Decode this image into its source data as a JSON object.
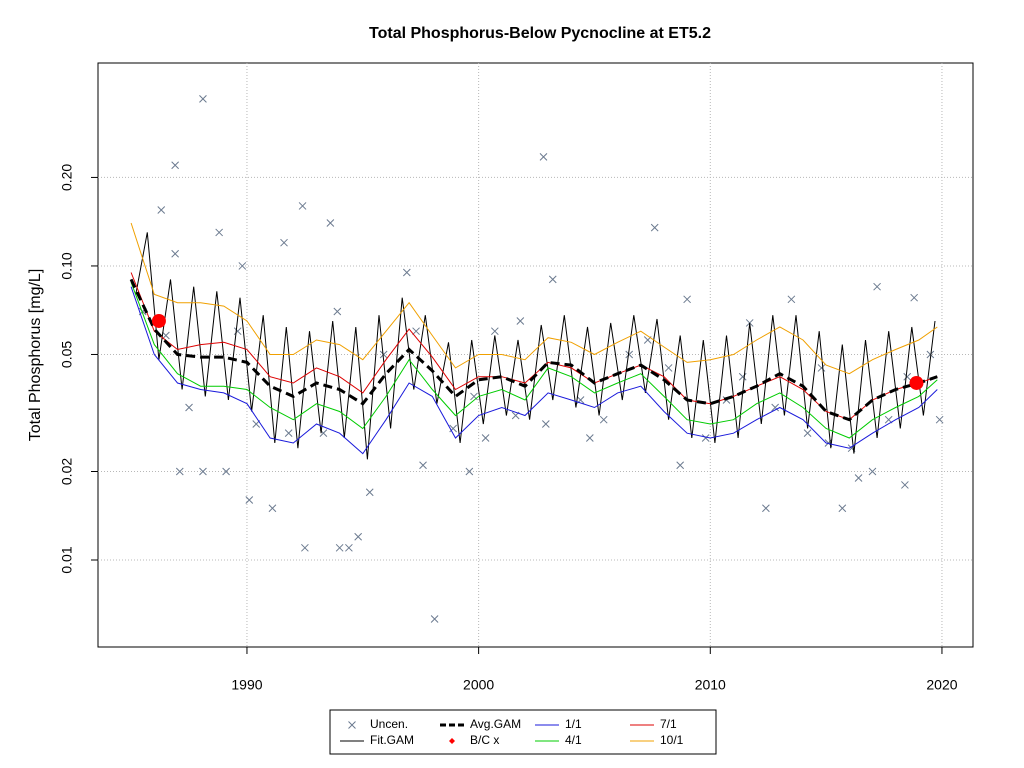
{
  "chart_data": {
    "type": "line",
    "title": "Total Phosphorus-Below Pycnocline at ET5.2",
    "y_label": "Total Phosphorus [mg/L]",
    "y_log": true,
    "grid": true,
    "legend": "bottom",
    "xlim": [
      1983.57,
      2021.34
    ],
    "ylim": [
      0.00506,
      0.49
    ],
    "xticks": [
      1990,
      2000,
      2010,
      2020
    ],
    "yticks": [
      0.01,
      0.02,
      0.05,
      {
        "value": 0.1,
        "label": "0.10"
      },
      {
        "value": 0.2,
        "label": "0.20"
      }
    ],
    "series": [
      {
        "name": "Uncen.",
        "type": "scatter",
        "color": "#6b7a8f",
        "x": [
          1988.1,
          1986.9,
          2002.8,
          1992.4,
          1993.6,
          2007.6,
          1986.3,
          1988.8,
          1991.6,
          1986.9,
          1989.8,
          1996.9,
          1998.1,
          1992.5,
          1994.0,
          1994.4,
          1994.8,
          1995.3,
          1990.1,
          1991.1,
          2012.4,
          2015.7,
          1987.1,
          1988.1,
          1989.1,
          1997.6,
          1999.6,
          2008.7,
          2016.4,
          2018.4,
          2017.0,
          2003.2,
          2013.5,
          2017.2,
          2018.8,
          1993.9,
          2001.8,
          2009.0,
          2011.7,
          1989.6,
          1985.5,
          1986.5,
          1987.5,
          1990.4,
          1991.8,
          1993.3,
          1995.9,
          1997.3,
          1998.9,
          1999.8,
          2000.7,
          2001.6,
          2002.9,
          2004.4,
          2005.4,
          2006.5,
          2007.3,
          2008.2,
          2009.8,
          2010.7,
          2011.4,
          2012.8,
          2014.2,
          2015.1,
          2016.1,
          2017.7,
          2018.5,
          2019.5,
          2019.9,
          2014.8,
          2004.8,
          2000.3
        ],
        "values": [
          0.37,
          0.22,
          0.235,
          0.16,
          0.14,
          0.135,
          0.155,
          0.13,
          0.12,
          0.11,
          0.1,
          0.095,
          0.0063,
          0.011,
          0.011,
          0.011,
          0.012,
          0.017,
          0.016,
          0.015,
          0.015,
          0.015,
          0.02,
          0.02,
          0.02,
          0.021,
          0.02,
          0.021,
          0.019,
          0.018,
          0.02,
          0.09,
          0.077,
          0.085,
          0.078,
          0.07,
          0.065,
          0.077,
          0.064,
          0.06,
          0.07,
          0.058,
          0.033,
          0.029,
          0.027,
          0.027,
          0.05,
          0.06,
          0.028,
          0.036,
          0.06,
          0.031,
          0.029,
          0.035,
          0.03,
          0.05,
          0.056,
          0.045,
          0.026,
          0.035,
          0.042,
          0.033,
          0.027,
          0.025,
          0.024,
          0.03,
          0.042,
          0.05,
          0.03,
          0.045,
          0.026,
          0.026
        ]
      },
      {
        "name": "Fit.GAM",
        "type": "line",
        "color": "#000000",
        "x": [
          1985.2,
          1985.7,
          1986.2,
          1986.7,
          1987.2,
          1987.7,
          1988.2,
          1988.7,
          1989.2,
          1989.7,
          1990.2,
          1990.7,
          1991.2,
          1991.7,
          1992.2,
          1992.7,
          1993.2,
          1993.7,
          1994.2,
          1994.7,
          1995.2,
          1995.7,
          1996.2,
          1996.7,
          1997.2,
          1997.7,
          1998.2,
          1998.7,
          1999.2,
          1999.7,
          2000.2,
          2000.7,
          2001.2,
          2001.7,
          2002.2,
          2002.7,
          2003.2,
          2003.7,
          2004.2,
          2004.7,
          2005.2,
          2005.7,
          2006.2,
          2006.7,
          2007.2,
          2007.7,
          2008.2,
          2008.7,
          2009.2,
          2009.7,
          2010.2,
          2010.7,
          2011.2,
          2011.7,
          2012.2,
          2012.7,
          2013.2,
          2013.7,
          2014.2,
          2014.7,
          2015.2,
          2015.7,
          2016.2,
          2016.7,
          2017.2,
          2017.7,
          2018.2,
          2018.7,
          2019.2,
          2019.7
        ],
        "values": [
          0.08,
          0.13,
          0.048,
          0.09,
          0.038,
          0.085,
          0.036,
          0.082,
          0.035,
          0.078,
          0.032,
          0.068,
          0.025,
          0.062,
          0.024,
          0.06,
          0.027,
          0.065,
          0.026,
          0.062,
          0.022,
          0.068,
          0.028,
          0.078,
          0.038,
          0.068,
          0.034,
          0.055,
          0.025,
          0.056,
          0.029,
          0.058,
          0.031,
          0.056,
          0.03,
          0.063,
          0.035,
          0.068,
          0.033,
          0.062,
          0.031,
          0.064,
          0.035,
          0.068,
          0.037,
          0.066,
          0.03,
          0.058,
          0.026,
          0.056,
          0.025,
          0.058,
          0.026,
          0.064,
          0.029,
          0.068,
          0.031,
          0.068,
          0.028,
          0.06,
          0.024,
          0.054,
          0.023,
          0.056,
          0.026,
          0.06,
          0.028,
          0.062,
          0.031,
          0.065
        ]
      },
      {
        "name": "Avg.GAM",
        "type": "line",
        "dashed": true,
        "color": "#000000",
        "x": [
          1985,
          1986,
          1987,
          1988,
          1989,
          1990,
          1991,
          1992,
          1993,
          1994,
          1995,
          1996,
          1997,
          1998,
          1999,
          2000,
          2001,
          2002,
          2003,
          2004,
          2005,
          2006,
          2007,
          2008,
          2009,
          2010,
          2011,
          2012,
          2013,
          2014,
          2015,
          2016,
          2017,
          2018,
          2019,
          2019.8
        ],
        "values": [
          0.09,
          0.061,
          0.05,
          0.049,
          0.049,
          0.047,
          0.039,
          0.036,
          0.04,
          0.038,
          0.034,
          0.043,
          0.052,
          0.044,
          0.036,
          0.041,
          0.042,
          0.039,
          0.047,
          0.046,
          0.04,
          0.043,
          0.046,
          0.041,
          0.035,
          0.034,
          0.036,
          0.039,
          0.043,
          0.039,
          0.032,
          0.03,
          0.035,
          0.038,
          0.04,
          0.042
        ]
      },
      {
        "name": "B/C x",
        "type": "scatter",
        "color": "#ff0000",
        "x": [
          1986.2,
          2018.9
        ],
        "values": [
          0.065,
          0.04
        ]
      },
      {
        "name": "1/1",
        "type": "line",
        "color": "#1a1adb",
        "x": [
          1985,
          1986,
          1987,
          1988,
          1989,
          1990,
          1991,
          1992,
          1993,
          1994,
          1995,
          1996,
          1997,
          1998,
          1999,
          2000,
          2001,
          2002,
          2003,
          2004,
          2005,
          2006,
          2007,
          2008,
          2009,
          2010,
          2011,
          2012,
          2013,
          2014,
          2015,
          2016,
          2017,
          2018,
          2019,
          2019.8
        ],
        "values": [
          0.085,
          0.05,
          0.04,
          0.038,
          0.037,
          0.034,
          0.026,
          0.025,
          0.029,
          0.027,
          0.023,
          0.03,
          0.04,
          0.036,
          0.026,
          0.031,
          0.033,
          0.031,
          0.037,
          0.035,
          0.033,
          0.037,
          0.039,
          0.032,
          0.027,
          0.026,
          0.027,
          0.03,
          0.033,
          0.03,
          0.025,
          0.024,
          0.027,
          0.03,
          0.033,
          0.038
        ]
      },
      {
        "name": "4/1",
        "type": "line",
        "color": "#00cc00",
        "x": [
          1985,
          1986,
          1987,
          1988,
          1989,
          1990,
          1991,
          1992,
          1993,
          1994,
          1995,
          1996,
          1997,
          1998,
          1999,
          2000,
          2001,
          2002,
          2003,
          2004,
          2005,
          2006,
          2007,
          2008,
          2009,
          2010,
          2011,
          2012,
          2013,
          2014,
          2015,
          2016,
          2017,
          2018,
          2019,
          2019.8
        ],
        "values": [
          0.088,
          0.054,
          0.043,
          0.039,
          0.039,
          0.038,
          0.033,
          0.03,
          0.034,
          0.032,
          0.028,
          0.036,
          0.048,
          0.038,
          0.031,
          0.036,
          0.038,
          0.035,
          0.045,
          0.042,
          0.037,
          0.04,
          0.043,
          0.036,
          0.03,
          0.029,
          0.03,
          0.034,
          0.037,
          0.033,
          0.028,
          0.026,
          0.03,
          0.033,
          0.036,
          0.041
        ]
      },
      {
        "name": "7/1",
        "type": "line",
        "color": "#dd0000",
        "x": [
          1985,
          1986,
          1987,
          1988,
          1989,
          1990,
          1991,
          1992,
          1993,
          1994,
          1995,
          1996,
          1997,
          1998,
          1999,
          2000,
          2001,
          2002,
          2003,
          2004,
          2005,
          2006,
          2007,
          2008,
          2009,
          2010,
          2011,
          2012,
          2013,
          2014,
          2015,
          2016,
          2017,
          2018,
          2019,
          2019.8
        ],
        "values": [
          0.095,
          0.06,
          0.052,
          0.054,
          0.055,
          0.052,
          0.042,
          0.04,
          0.045,
          0.042,
          0.037,
          0.048,
          0.061,
          0.049,
          0.038,
          0.042,
          0.042,
          0.04,
          0.047,
          0.045,
          0.04,
          0.043,
          0.046,
          0.042,
          0.035,
          0.034,
          0.036,
          0.039,
          0.042,
          0.038,
          0.032,
          0.03,
          0.035,
          0.038,
          0.04,
          0.042
        ]
      },
      {
        "name": "10/1",
        "type": "line",
        "color": "#f0a000",
        "x": [
          1985,
          1986,
          1987,
          1988,
          1989,
          1990,
          1991,
          1992,
          1993,
          1994,
          1995,
          1996,
          1997,
          1998,
          1999,
          2000,
          2001,
          2002,
          2003,
          2004,
          2005,
          2006,
          2007,
          2008,
          2009,
          2010,
          2011,
          2012,
          2013,
          2014,
          2015,
          2016,
          2017,
          2018,
          2019,
          2019.8
        ],
        "values": [
          0.14,
          0.08,
          0.075,
          0.075,
          0.073,
          0.065,
          0.05,
          0.05,
          0.056,
          0.054,
          0.048,
          0.06,
          0.075,
          0.058,
          0.045,
          0.05,
          0.05,
          0.048,
          0.057,
          0.055,
          0.05,
          0.055,
          0.06,
          0.053,
          0.047,
          0.048,
          0.05,
          0.056,
          0.062,
          0.056,
          0.046,
          0.043,
          0.048,
          0.052,
          0.056,
          0.062
        ]
      }
    ]
  }
}
